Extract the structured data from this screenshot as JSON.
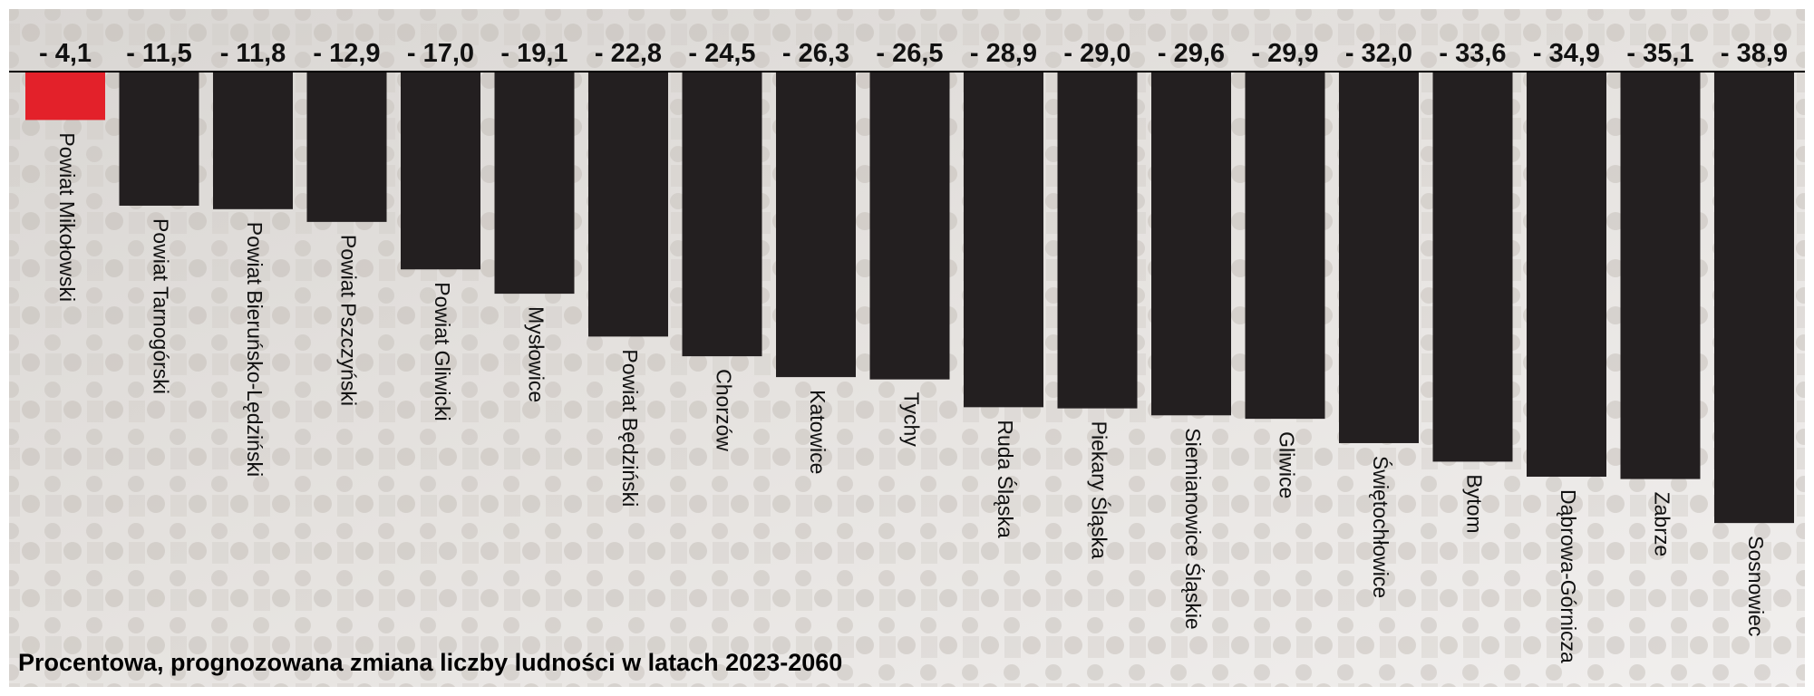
{
  "chart_data": {
    "type": "bar",
    "title": "Procentowa, prognozowana zmiana liczby ludności w latach 2023-2060",
    "categories": [
      "Powiat Mikołowski",
      "Powiat Tarnogórski",
      "Powiat Bieruńsko-Lędziński",
      "Powiat Pszczyński",
      "Powiat Gliwicki",
      "Mysłowice",
      "Powiat Będziński",
      "Chorzów",
      "Katowice",
      "Tychy",
      "Ruda Śląska",
      "Piekary Śląska",
      "Siemianowice Śląskie",
      "Gliwice",
      "Świętochłowice",
      "Bytom",
      "Dąbrowa-Górnicza",
      "Zabrze",
      "Sosnowiec"
    ],
    "values": [
      -4.1,
      -11.5,
      -11.8,
      -12.9,
      -17.0,
      -19.1,
      -22.8,
      -24.5,
      -26.3,
      -26.5,
      -28.9,
      -29.0,
      -29.6,
      -29.9,
      -32.0,
      -33.6,
      -34.9,
      -35.1,
      -38.9
    ],
    "value_labels": [
      "- 4,1",
      "- 11,5",
      "- 11,8",
      "- 12,9",
      "- 17,0",
      "- 19,1",
      "- 22,8",
      "- 24,5",
      "- 26,3",
      "- 26,5",
      "- 28,9",
      "- 29,0",
      "- 29,6",
      "- 29,9",
      "- 32,0",
      "- 33,6",
      "- 34,9",
      "- 35,1",
      "- 38,9"
    ],
    "colors": [
      "#e3212a",
      "#231f20",
      "#231f20",
      "#231f20",
      "#231f20",
      "#231f20",
      "#231f20",
      "#231f20",
      "#231f20",
      "#231f20",
      "#231f20",
      "#231f20",
      "#231f20",
      "#231f20",
      "#231f20",
      "#231f20",
      "#231f20",
      "#231f20",
      "#231f20"
    ],
    "ylim": [
      -50,
      0
    ]
  }
}
